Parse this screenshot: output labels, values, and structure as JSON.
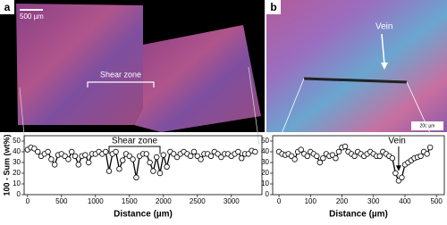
{
  "figure": {
    "panels": [
      {
        "label": "a",
        "scale_bar": "500 µm",
        "annotation": "Shear zone"
      },
      {
        "label": "b",
        "annotation": "Vein",
        "scale_bar": "200 µm"
      }
    ]
  },
  "chart_data": [
    {
      "type": "line",
      "ylabel": "100 - Sum (wt%)",
      "xlabel": "Distance (µm)",
      "annotation": "Shear zone",
      "x": [
        0,
        50,
        100,
        150,
        200,
        250,
        300,
        350,
        400,
        450,
        500,
        550,
        600,
        650,
        700,
        750,
        800,
        850,
        900,
        950,
        1000,
        1050,
        1100,
        1150,
        1200,
        1250,
        1300,
        1350,
        1400,
        1450,
        1500,
        1550,
        1600,
        1650,
        1700,
        1750,
        1800,
        1850,
        1900,
        1950,
        2000,
        2050,
        2100,
        2150,
        2200,
        2250,
        2300,
        2350,
        2400,
        2450,
        2500,
        2550,
        2600,
        2650,
        2700,
        2750,
        2800,
        2850,
        2900,
        2950,
        3000,
        3050,
        3100,
        3150,
        3200,
        3250,
        3300,
        3350
      ],
      "values": [
        42,
        44,
        43,
        40,
        36,
        38,
        40,
        33,
        28,
        37,
        38,
        36,
        33,
        40,
        36,
        28,
        36,
        37,
        30,
        38,
        38,
        40,
        38,
        40,
        22,
        38,
        40,
        24,
        32,
        38,
        36,
        33,
        16,
        36,
        38,
        38,
        30,
        22,
        35,
        20,
        37,
        26,
        40,
        38,
        35,
        38,
        40,
        38,
        36,
        40,
        36,
        33,
        38,
        38,
        36,
        40,
        38,
        35,
        38,
        38,
        36,
        38,
        40,
        34,
        38,
        38,
        41,
        40
      ],
      "xlim": [
        -50,
        3450
      ],
      "xticks": [
        0,
        500,
        1000,
        1500,
        2000,
        2500,
        3000
      ],
      "ylim": [
        0,
        55
      ],
      "yticks": [
        0,
        10,
        20,
        30,
        40,
        50
      ],
      "color": "#000000"
    },
    {
      "type": "line",
      "xlabel": "Distance (µm)",
      "annotation": "Vein",
      "x": [
        0,
        10,
        20,
        30,
        40,
        50,
        60,
        70,
        80,
        90,
        100,
        110,
        120,
        130,
        140,
        150,
        160,
        170,
        180,
        190,
        200,
        210,
        220,
        230,
        240,
        250,
        260,
        270,
        280,
        290,
        300,
        310,
        320,
        330,
        340,
        350,
        360,
        370,
        380,
        390,
        400,
        410,
        420,
        430,
        440,
        450,
        460,
        470,
        480
      ],
      "values": [
        40,
        38,
        37,
        38,
        36,
        33,
        40,
        42,
        38,
        36,
        40,
        38,
        36,
        30,
        34,
        38,
        36,
        37,
        34,
        40,
        44,
        45,
        40,
        38,
        36,
        40,
        38,
        36,
        38,
        40,
        38,
        36,
        36,
        40,
        38,
        36,
        34,
        20,
        13,
        16,
        28,
        30,
        32,
        34,
        35,
        36,
        40,
        38,
        44
      ],
      "xlim": [
        -20,
        525
      ],
      "xticks": [
        0,
        100,
        200,
        300,
        400,
        500
      ],
      "ylim": [
        0,
        55
      ],
      "yticks": [
        0,
        10,
        20,
        30,
        40,
        50
      ],
      "color": "#000000"
    }
  ]
}
